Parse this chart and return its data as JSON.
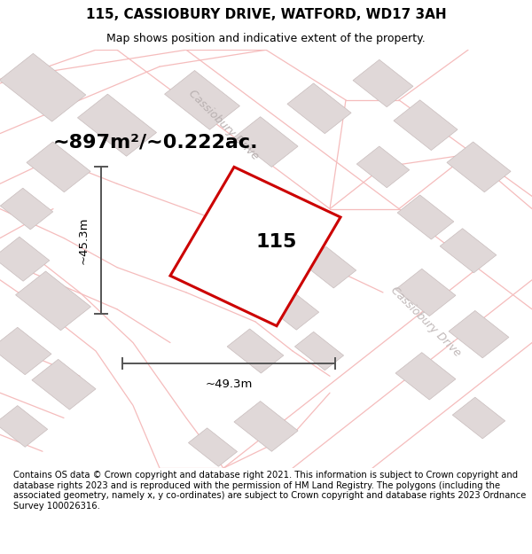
{
  "title": "115, CASSIOBURY DRIVE, WATFORD, WD17 3AH",
  "subtitle": "Map shows position and indicative extent of the property.",
  "area_text": "~897m²/~0.222ac.",
  "label_115": "115",
  "dim_width": "~49.3m",
  "dim_height": "~45.3m",
  "footer_text": "Contains OS data © Crown copyright and database right 2021. This information is subject to Crown copyright and database rights 2023 and is reproduced with the permission of HM Land Registry. The polygons (including the associated geometry, namely x, y co-ordinates) are subject to Crown copyright and database rights 2023 Ordnance Survey 100026316.",
  "map_bg": "#ffffff",
  "road_line_color": "#f5bcbc",
  "building_color": "#e0d8d8",
  "building_edge_color": "#c8bcbc",
  "plot_outline_color": "#cc0000",
  "dim_line_color": "#555555",
  "street_label_color": "#b8b0b0",
  "title_fontsize": 11,
  "subtitle_fontsize": 9,
  "area_fontsize": 16,
  "label_fontsize": 16,
  "dim_fontsize": 9.5,
  "footer_fontsize": 7.2,
  "street_fontsize": 9,
  "street_label_color2": "#c0b8b8"
}
